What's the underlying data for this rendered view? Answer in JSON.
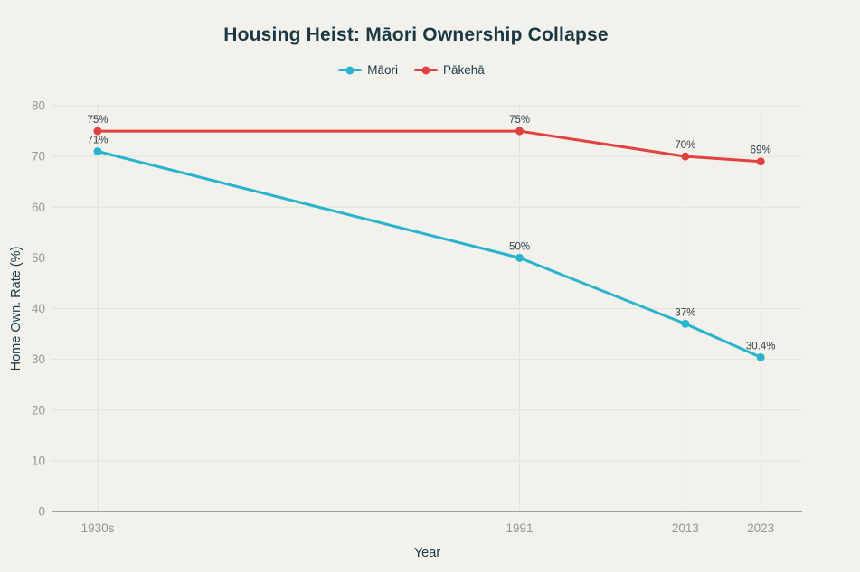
{
  "title": "Housing Heist: Māori Ownership Collapse",
  "legend": {
    "items": [
      {
        "label": "Māori",
        "color": "#29b4cd"
      },
      {
        "label": "Pākehā",
        "color": "#e04242"
      }
    ]
  },
  "chart_data": {
    "type": "line",
    "title": "Housing Heist: Māori Ownership Collapse",
    "xlabel": "Year",
    "ylabel": "Home Own. Rate (%)",
    "categories": [
      "1930s",
      "1991",
      "2013",
      "2023"
    ],
    "x_numeric": [
      1935,
      1991,
      2013,
      2023
    ],
    "series": [
      {
        "name": "Māori",
        "color": "#29b4cd",
        "values": [
          71,
          50,
          37,
          30.4
        ],
        "point_labels": [
          "71%",
          "50%",
          "37%",
          "30.4%"
        ]
      },
      {
        "name": "Pākehā",
        "color": "#e04242",
        "values": [
          75,
          75,
          70,
          69
        ],
        "point_labels": [
          "75%",
          "75%",
          "70%",
          "69%"
        ]
      }
    ],
    "ylim": [
      0,
      80
    ],
    "yticks": [
      0,
      10,
      20,
      30,
      40,
      50,
      60,
      70,
      80
    ],
    "ytick_labels": [
      "0",
      "10",
      "20",
      "30",
      "40",
      "50",
      "60",
      "70",
      "80"
    ],
    "grid": true,
    "legend_position": "top"
  },
  "colors": {
    "background": "#f2f1eb",
    "title_text": "#1a3844",
    "axis_title_text": "#1a3844",
    "tick_text": "#95948d",
    "gridline": "#e3e2da",
    "axis_line": "#73736c",
    "data_label_text": "#33424a",
    "maori_series": "#29b4cd",
    "pakeha_series": "#e04242"
  }
}
